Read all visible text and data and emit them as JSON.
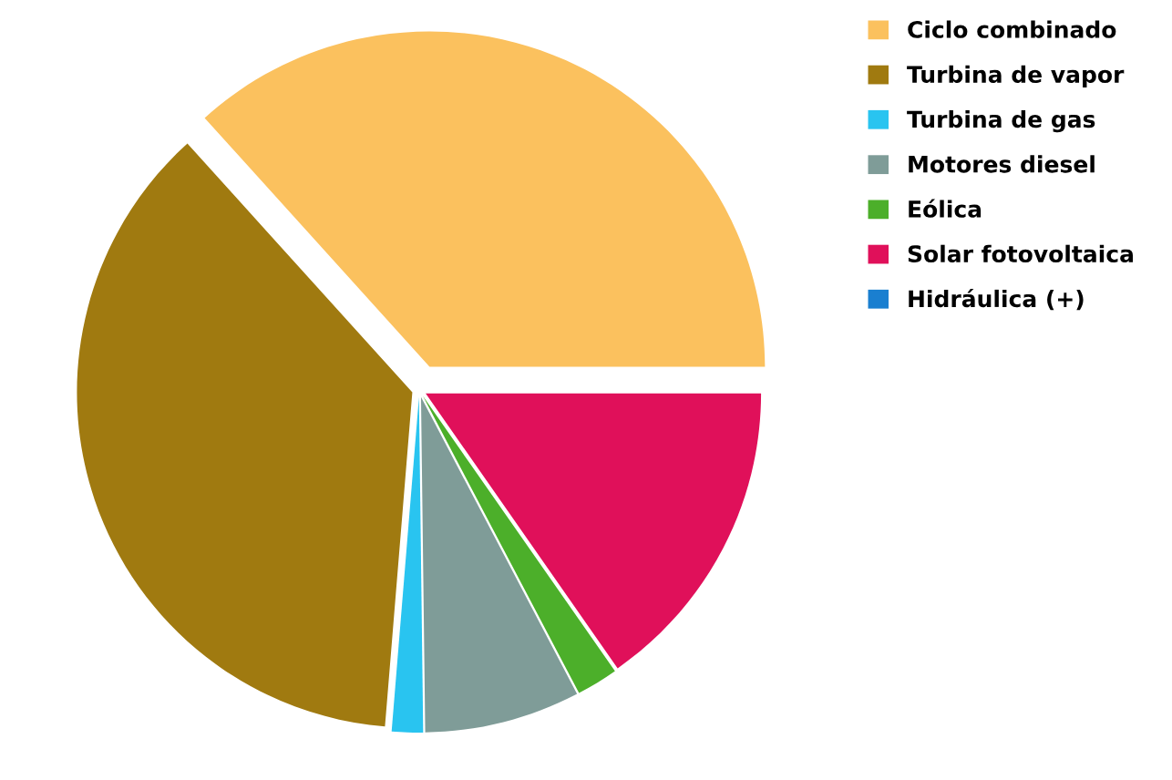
{
  "chart_data": {
    "type": "pie",
    "categories": [
      "Ciclo combinado",
      "Turbina de vapor",
      "Turbina de gas",
      "Motores diesel",
      "Eólica",
      "Solar fotovoltaica",
      "Hidráulica (+)"
    ],
    "values": [
      36.7,
      37,
      1.5,
      7.5,
      2,
      15.3,
      0
    ],
    "colors": [
      "#fbc15e",
      "#a07a10",
      "#29c4f0",
      "#7f9c98",
      "#4caf2a",
      "#e0105a",
      "#1a7fd0"
    ],
    "legend": "top right"
  }
}
